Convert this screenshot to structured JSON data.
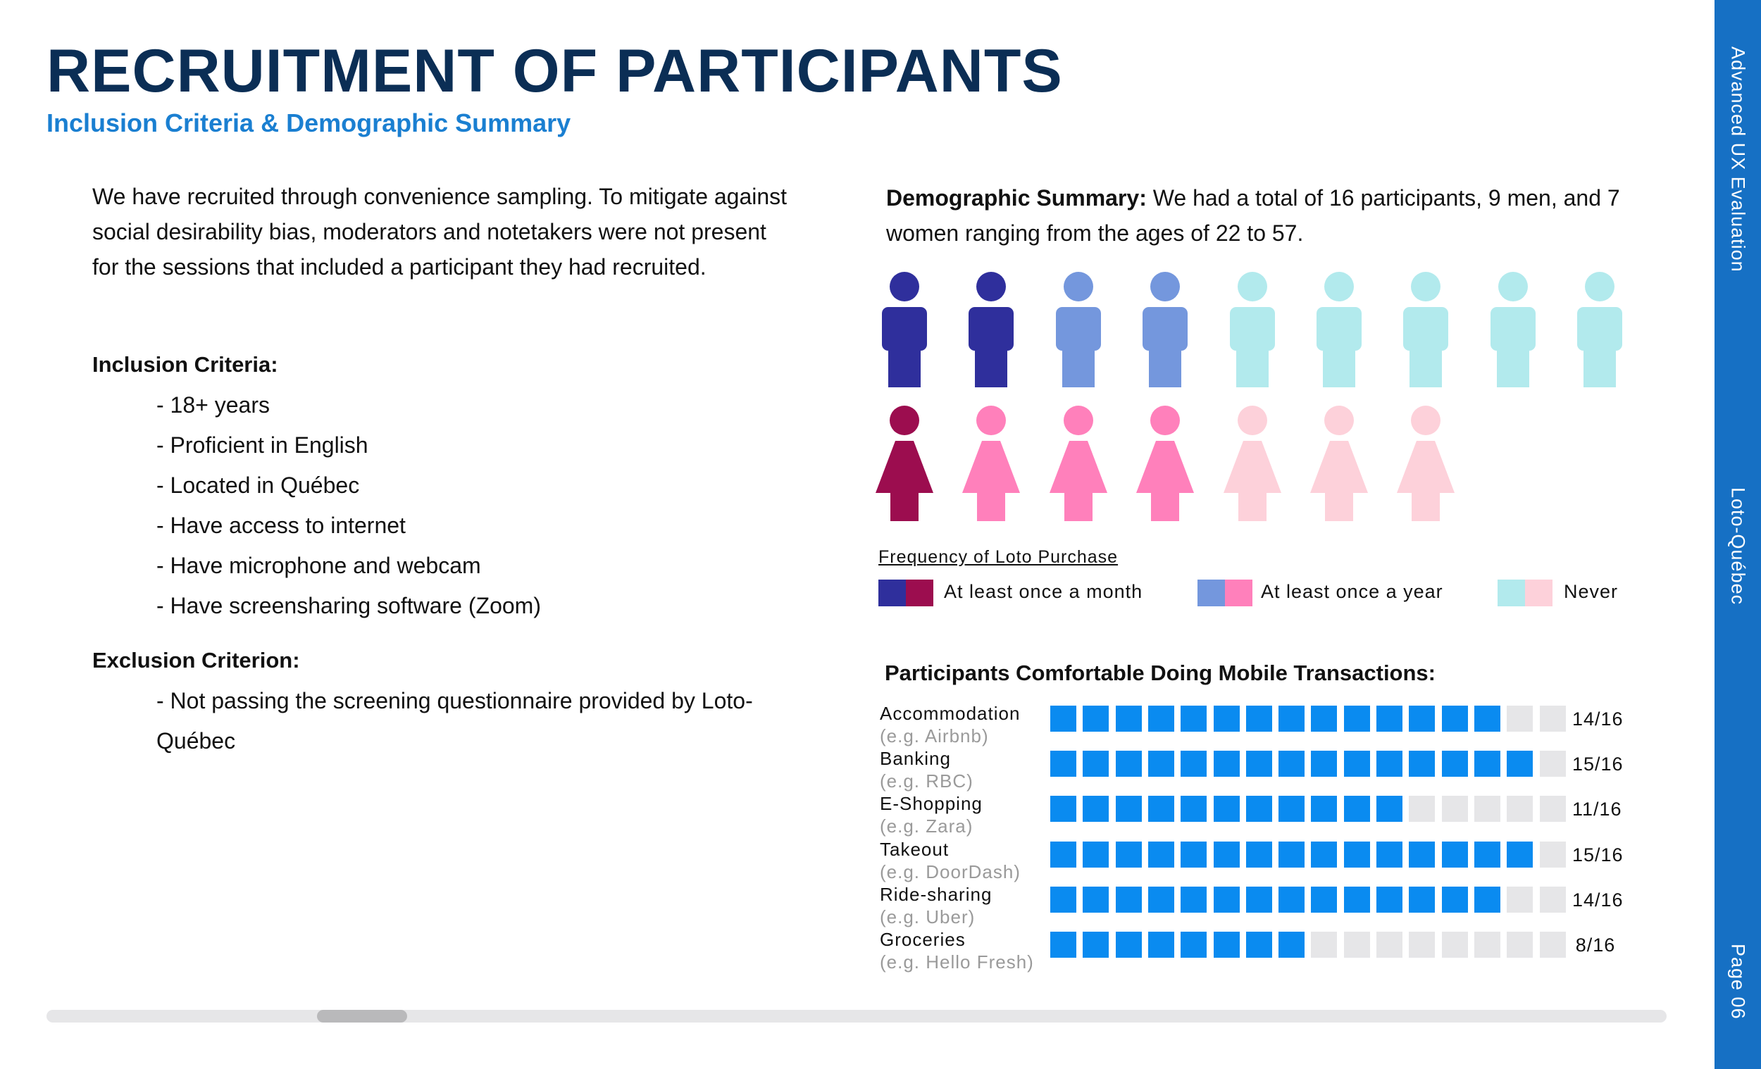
{
  "header": {
    "title": "RECRUITMENT OF PARTICIPANTS",
    "subtitle": "Inclusion Criteria & Demographic Summary"
  },
  "sidebar": {
    "top_label": "Advanced UX Evaluation",
    "middle_label": "Loto-Québec",
    "page_label": "Page 06"
  },
  "left": {
    "intro": "We have recruited through convenience sampling. To mitigate against social desirability bias, moderators and notetakers were not present for the sessions that included a participant they had recruited.",
    "inclusion_heading": "Inclusion Criteria:",
    "inclusion_items": [
      "- 18+ years",
      "- Proficient in English",
      "- Located in Québec",
      "- Have access to internet",
      "- Have microphone and webcam",
      "- Have screensharing software (Zoom)"
    ],
    "exclusion_heading": "Exclusion Criterion:",
    "exclusion_text": "- Not passing the screening questionnaire provided by Loto-Québec"
  },
  "demographics": {
    "label": "Demographic Summary:",
    "text": " We had a total of 16 participants, 9 men, and 7 women ranging from the ages of 22 to 57.",
    "men": [
      "month",
      "month",
      "year",
      "year",
      "never",
      "never",
      "never",
      "never",
      "never"
    ],
    "women": [
      "month",
      "year",
      "year",
      "year",
      "never",
      "never",
      "never"
    ],
    "colors": {
      "men": {
        "month": "#2f2f9c",
        "year": "#7497dd",
        "never": "#b2eaed"
      },
      "women": {
        "month": "#9c0d4f",
        "year": "#ff80bb",
        "never": "#fdd1da"
      }
    }
  },
  "legend": {
    "title": "Frequency of Loto Purchase",
    "items": [
      {
        "label": "At least once a month",
        "men_color": "#2f2f9c",
        "women_color": "#9c0d4f"
      },
      {
        "label": "At least once a year",
        "men_color": "#7497dd",
        "women_color": "#ff80bb"
      },
      {
        "label": "Never",
        "men_color": "#b2eaed",
        "women_color": "#fdd1da"
      }
    ]
  },
  "mobile": {
    "title": "Participants Comfortable Doing Mobile Transactions:",
    "total": 16,
    "filled_color": "#0a8bf0",
    "empty_color": "#e6e6e8",
    "rows": [
      {
        "name": "Accommodation",
        "example": "(e.g. Airbnb)",
        "count": 14,
        "score": "14/16"
      },
      {
        "name": "Banking",
        "example": "(e.g. RBC)",
        "count": 15,
        "score": "15/16"
      },
      {
        "name": "E-Shopping",
        "example": "(e.g. Zara)",
        "count": 11,
        "score": "11/16"
      },
      {
        "name": "Takeout",
        "example": "(e.g. DoorDash)",
        "count": 15,
        "score": "15/16"
      },
      {
        "name": "Ride-sharing",
        "example": "(e.g. Uber)",
        "count": 14,
        "score": "14/16"
      },
      {
        "name": "Groceries",
        "example": "(e.g. Hello Fresh)",
        "count": 8,
        "score": "8/16"
      }
    ]
  }
}
